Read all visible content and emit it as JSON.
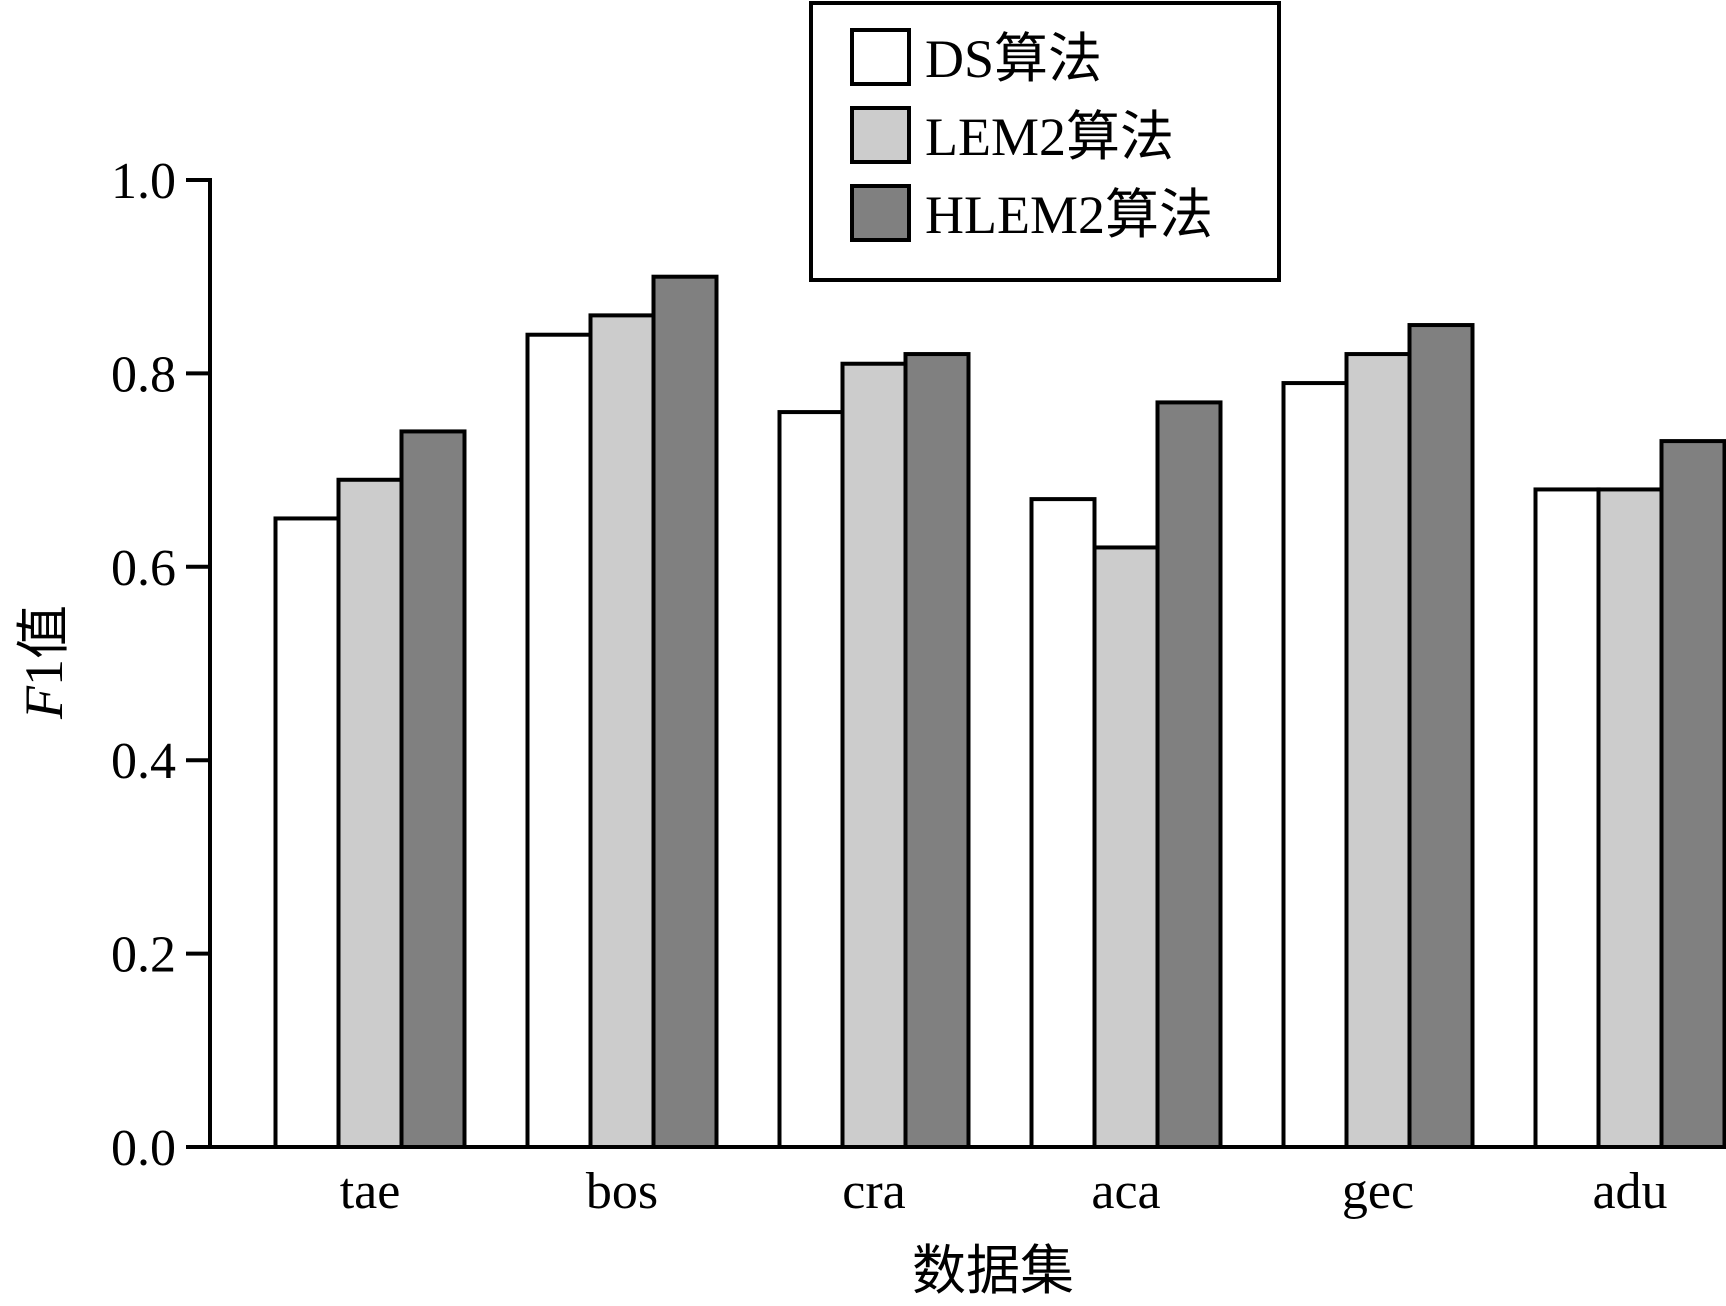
{
  "chart_data": {
    "type": "bar",
    "title": "",
    "xlabel": "数据集",
    "ylabel_italic": "F",
    "ylabel_rest": "1值",
    "categories": [
      "tae",
      "bos",
      "cra",
      "aca",
      "gec",
      "adu"
    ],
    "series": [
      {
        "name": "DS算法",
        "color": "#ffffff",
        "values": [
          0.65,
          0.84,
          0.76,
          0.67,
          0.79,
          0.68
        ]
      },
      {
        "name": "LEM2算法",
        "color": "#cccccc",
        "values": [
          0.69,
          0.86,
          0.81,
          0.62,
          0.82,
          0.68
        ]
      },
      {
        "name": "HLEM2算法",
        "color": "#808080",
        "values": [
          0.74,
          0.9,
          0.82,
          0.77,
          0.85,
          0.73
        ]
      }
    ],
    "ylim": [
      0,
      1.0
    ],
    "yticks": [
      "0.0",
      "0.2",
      "0.4",
      "0.6",
      "0.8",
      "1.0"
    ],
    "grid": false,
    "legend_position": "top-center"
  }
}
